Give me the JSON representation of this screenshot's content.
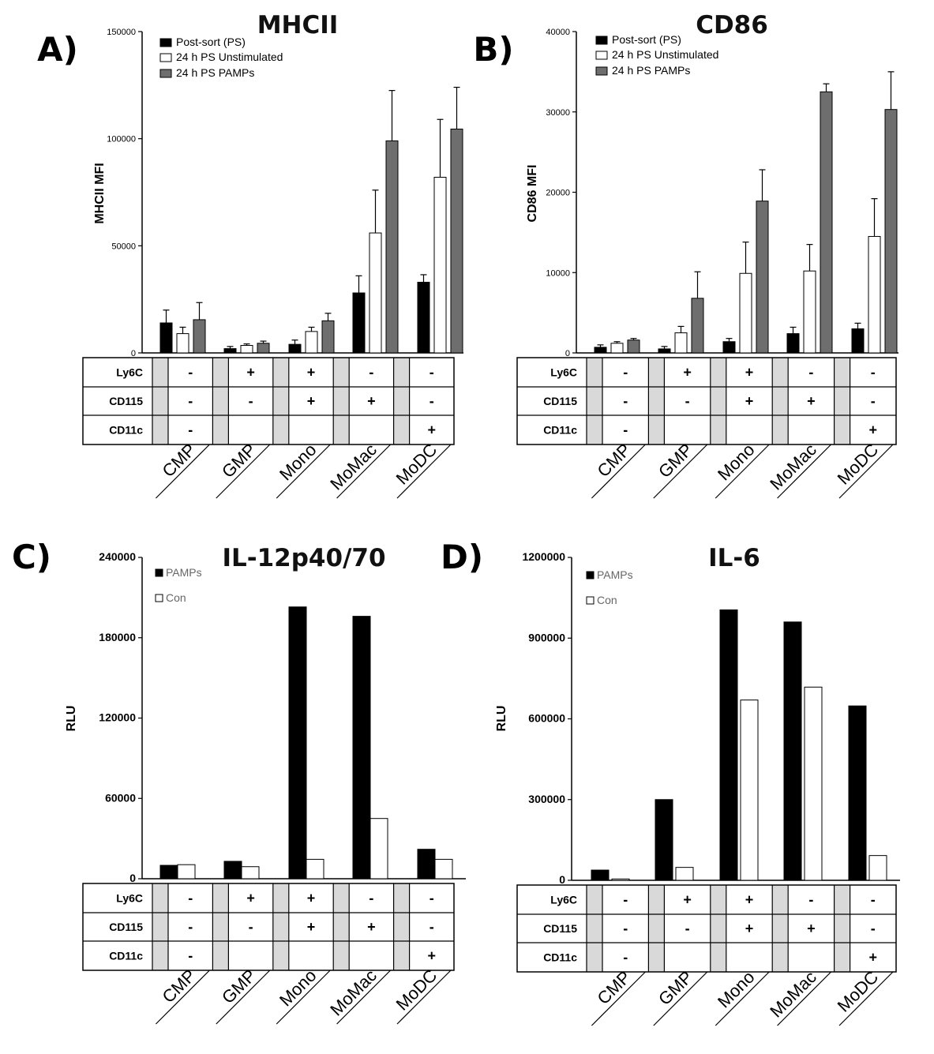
{
  "colors": {
    "ps": "#000000",
    "unstim": "#ffffff",
    "pamps": "#6e6e6e",
    "grey_cell": "#d9d9d9",
    "pamps_bw": "#000000",
    "con_bw": "#ffffff"
  },
  "categories": [
    "CMP",
    "GMP",
    "Mono",
    "MoMac",
    "MoDC"
  ],
  "marker_table": {
    "rows": [
      {
        "label": "Ly6C",
        "values": [
          "-",
          "+",
          "+",
          "-",
          "-"
        ]
      },
      {
        "label": "CD115",
        "values": [
          "-",
          "-",
          "+",
          "+",
          "-"
        ]
      },
      {
        "label": "CD11c",
        "values": [
          "-",
          "",
          "",
          "",
          "+"
        ]
      }
    ]
  },
  "chart_data": [
    {
      "panel": "A)",
      "type": "bar",
      "title": "MHCII",
      "ylabel": "MHCII MFI",
      "ylim": [
        0,
        150000
      ],
      "yticks": [
        "0",
        "50000",
        "100000",
        "150000"
      ],
      "ytick_values": [
        0,
        50000,
        100000,
        150000
      ],
      "categories": [
        "CMP",
        "GMP",
        "Mono",
        "MoMac",
        "MoDC"
      ],
      "legend": [
        "Post-sort (PS)",
        "24 h PS Unstimulated",
        "24 h PS PAMPs"
      ],
      "series": [
        {
          "name": "Post-sort (PS)",
          "values": [
            14000,
            2000,
            4000,
            28000,
            33000
          ],
          "errors": [
            6000,
            1000,
            2000,
            8000,
            3500
          ]
        },
        {
          "name": "24 h PS Unstimulated",
          "values": [
            9000,
            3500,
            10000,
            56000,
            82000
          ],
          "errors": [
            3000,
            700,
            2000,
            20000,
            27000
          ]
        },
        {
          "name": "24 h PS PAMPs",
          "values": [
            15500,
            4500,
            15000,
            99000,
            104500
          ],
          "errors": [
            8000,
            1000,
            3500,
            23500,
            19500
          ]
        }
      ]
    },
    {
      "panel": "B)",
      "type": "bar",
      "title": "CD86",
      "ylabel": "CD86 MFI",
      "ylim": [
        0,
        40000
      ],
      "yticks": [
        "0",
        "10000",
        "20000",
        "30000",
        "40000"
      ],
      "ytick_values": [
        0,
        10000,
        20000,
        30000,
        40000
      ],
      "categories": [
        "CMP",
        "GMP",
        "Mono",
        "MoMac",
        "MoDC"
      ],
      "legend": [
        "Post-sort (PS)",
        "24 h PS Unstimulated",
        "24 h PS PAMPs"
      ],
      "series": [
        {
          "name": "Post-sort (PS)",
          "values": [
            700,
            500,
            1400,
            2400,
            3000
          ],
          "errors": [
            300,
            300,
            400,
            800,
            700
          ]
        },
        {
          "name": "24 h PS Unstimulated",
          "values": [
            1200,
            2500,
            9900,
            10200,
            14500
          ],
          "errors": [
            200,
            800,
            3900,
            3300,
            4700
          ]
        },
        {
          "name": "24 h PS PAMPs",
          "values": [
            1600,
            6800,
            18900,
            32500,
            30300
          ],
          "errors": [
            200,
            3300,
            3900,
            1000,
            4700
          ]
        }
      ]
    },
    {
      "panel": "C)",
      "type": "bar",
      "title": "IL-12p40/70",
      "ylabel": "RLU",
      "ylim": [
        0,
        240000
      ],
      "yticks": [
        "0",
        "60000",
        "120000",
        "180000",
        "240000"
      ],
      "ytick_values": [
        0,
        60000,
        120000,
        180000,
        240000
      ],
      "categories": [
        "CMP",
        "GMP",
        "Mono",
        "MoMac",
        "MoDC"
      ],
      "legend": [
        "PAMPs",
        "Con"
      ],
      "series": [
        {
          "name": "PAMPs",
          "values": [
            10000,
            13000,
            203000,
            196000,
            22000
          ]
        },
        {
          "name": "Con",
          "values": [
            10500,
            9000,
            14500,
            45000,
            14500
          ]
        }
      ]
    },
    {
      "panel": "D)",
      "type": "bar",
      "title": "IL-6",
      "ylabel": "RLU",
      "ylim": [
        0,
        1200000
      ],
      "yticks": [
        "0",
        "300000",
        "600000",
        "900000",
        "1200000"
      ],
      "ytick_values": [
        0,
        300000,
        600000,
        900000,
        1200000
      ],
      "categories": [
        "CMP",
        "GMP",
        "Mono",
        "MoMac",
        "MoDC"
      ],
      "legend": [
        "PAMPs",
        "Con"
      ],
      "series": [
        {
          "name": "PAMPs",
          "values": [
            38000,
            300000,
            1005000,
            960000,
            648000
          ]
        },
        {
          "name": "Con",
          "values": [
            5000,
            48000,
            670000,
            718000,
            92000
          ]
        }
      ]
    }
  ]
}
